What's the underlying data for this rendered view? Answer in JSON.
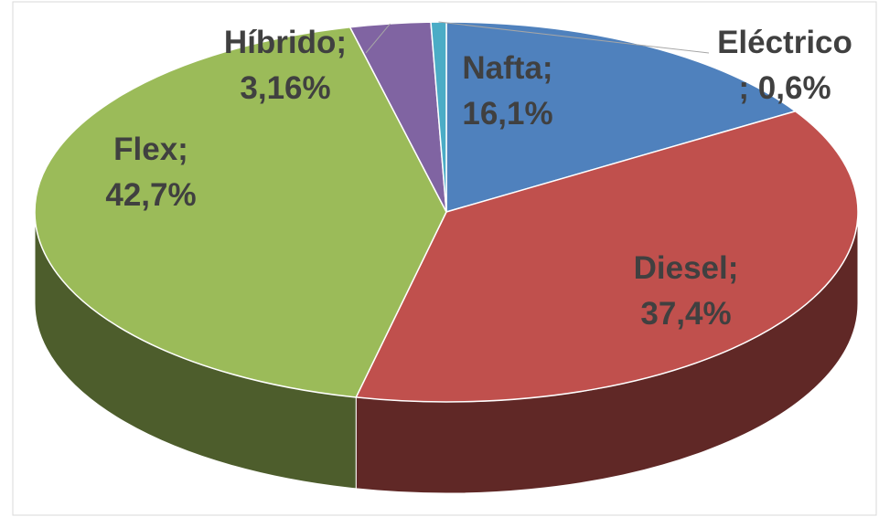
{
  "chart_data": {
    "type": "pie",
    "style": "3d",
    "categories": [
      "Nafta;",
      "Diesel;",
      "Flex;",
      "Híbrido;",
      "Eléctrico"
    ],
    "values": [
      16.1,
      37.4,
      42.7,
      3.16,
      0.6
    ],
    "value_labels": [
      "16,1%",
      "37,4%",
      "42,7%",
      "3,16%",
      "; 0,6%"
    ],
    "colors": [
      "#4f81bd",
      "#c0504d",
      "#9bbb59",
      "#8064a2",
      "#4bacc6"
    ]
  }
}
